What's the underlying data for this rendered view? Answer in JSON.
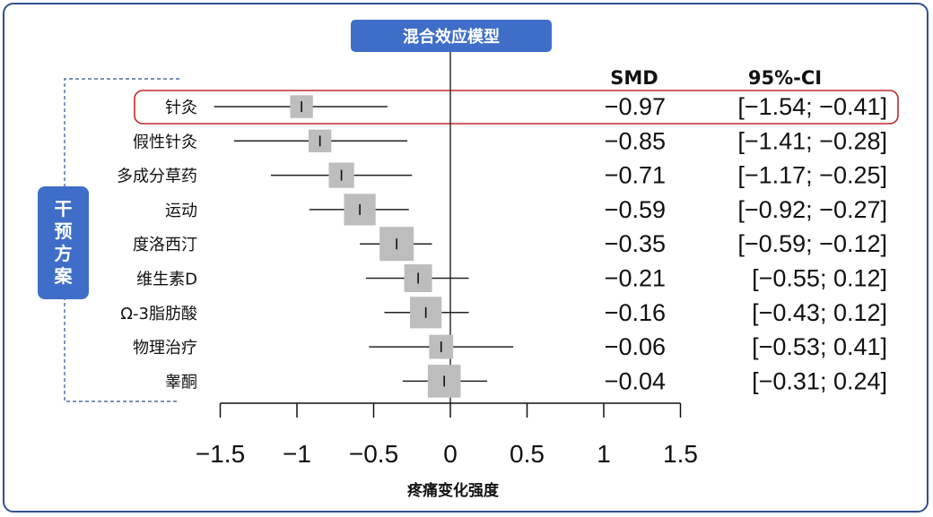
{
  "header_label": "混合效应模型",
  "group_label": "干预方案",
  "columns": {
    "smd": "SMD",
    "ci": "95%-CI"
  },
  "colors": {
    "frame": "#2f4f8f",
    "header_bg": "#3f6ec8",
    "highlight": "#c0282d",
    "box": "#bdbdbd",
    "line": "#222222",
    "bracket": "#2f4f8f"
  },
  "chart_data": {
    "type": "forest",
    "title": "",
    "xlabel": "疼痛变化强度",
    "xlim": [
      -1.5,
      1.5
    ],
    "xticks": [
      -1.5,
      -1,
      -0.5,
      0,
      0.5,
      1,
      1.5
    ],
    "xtick_labels": [
      "−1.5",
      "−1",
      "−0.5",
      "0",
      "0.5",
      "1",
      "1.5"
    ],
    "reference_line": 0,
    "highlighted_row": 0,
    "rows": [
      {
        "label": "针灸",
        "smd": -0.97,
        "lower": -1.54,
        "upper": -0.41,
        "weight": 0.55,
        "smd_text": "−0.97",
        "ci_text": "[−1.54; −0.41]"
      },
      {
        "label": "假性针灸",
        "smd": -0.85,
        "lower": -1.41,
        "upper": -0.28,
        "weight": 0.55,
        "smd_text": "−0.85",
        "ci_text": "[−1.41; −0.28]"
      },
      {
        "label": "多成分草药",
        "smd": -0.71,
        "lower": -1.17,
        "upper": -0.25,
        "weight": 0.65,
        "smd_text": "−0.71",
        "ci_text": "[−1.17; −0.25]"
      },
      {
        "label": "运动",
        "smd": -0.59,
        "lower": -0.92,
        "upper": -0.27,
        "weight": 0.9,
        "smd_text": "−0.59",
        "ci_text": "[−0.92; −0.27]"
      },
      {
        "label": "度洛西汀",
        "smd": -0.35,
        "lower": -0.59,
        "upper": -0.12,
        "weight": 1.0,
        "smd_text": "−0.35",
        "ci_text": "[−0.59; −0.12]"
      },
      {
        "label": "维生素D",
        "smd": -0.21,
        "lower": -0.55,
        "upper": 0.12,
        "weight": 0.75,
        "smd_text": "−0.21",
        "ci_text": "[−0.55;  0.12]"
      },
      {
        "label": "Ω-3脂肪酸",
        "smd": -0.16,
        "lower": -0.43,
        "upper": 0.12,
        "weight": 0.9,
        "smd_text": "−0.16",
        "ci_text": "[−0.43;  0.12]"
      },
      {
        "label": "物理治疗",
        "smd": -0.06,
        "lower": -0.53,
        "upper": 0.41,
        "weight": 0.6,
        "smd_text": "−0.06",
        "ci_text": "[−0.53;  0.41]"
      },
      {
        "label": "睾酮",
        "smd": -0.04,
        "lower": -0.31,
        "upper": 0.24,
        "weight": 0.95,
        "smd_text": "−0.04",
        "ci_text": "[−0.31;  0.24]"
      }
    ]
  }
}
